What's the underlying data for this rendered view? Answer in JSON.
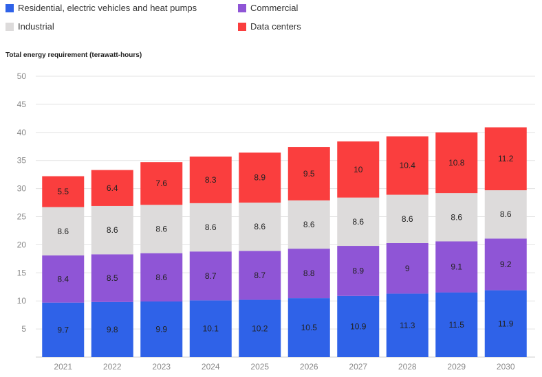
{
  "colors": {
    "residential": "#2f62e8",
    "commercial": "#8f55d6",
    "industrial": "#dddbdb",
    "data_centers": "#fa3e3e",
    "grid": "#e3e3e3",
    "axis": "#cccccc"
  },
  "legend": [
    {
      "label": "Residential, electric vehicles and heat pumps",
      "color": "#2f62e8"
    },
    {
      "label": "Commercial",
      "color": "#8f55d6"
    },
    {
      "label": "Industrial",
      "color": "#dddbdb"
    },
    {
      "label": "Data centers",
      "color": "#fa3e3e"
    }
  ],
  "chart_data": {
    "type": "bar",
    "stacked": true,
    "ylabel": "Total energy requirement (terawatt-hours)",
    "ylim": [
      0,
      50
    ],
    "yticks": [
      5,
      10,
      15,
      20,
      25,
      30,
      35,
      40,
      45,
      50
    ],
    "categories": [
      "2021",
      "2022",
      "2023",
      "2024",
      "2025",
      "2026",
      "2027",
      "2028",
      "2029",
      "2030"
    ],
    "series": [
      {
        "name": "Residential, electric vehicles and heat pumps",
        "color": "#2f62e8",
        "values": [
          9.7,
          9.8,
          9.9,
          10.1,
          10.2,
          10.5,
          10.9,
          11.3,
          11.5,
          11.9
        ]
      },
      {
        "name": "Commercial",
        "color": "#8f55d6",
        "values": [
          8.4,
          8.5,
          8.6,
          8.7,
          8.7,
          8.8,
          8.9,
          9,
          9.1,
          9.2
        ]
      },
      {
        "name": "Industrial",
        "color": "#dddbdb",
        "values": [
          8.6,
          8.6,
          8.6,
          8.6,
          8.6,
          8.6,
          8.6,
          8.6,
          8.6,
          8.6
        ]
      },
      {
        "name": "Data centers",
        "color": "#fa3e3e",
        "values": [
          5.5,
          6.4,
          7.6,
          8.3,
          8.9,
          9.5,
          10,
          10.4,
          10.8,
          11.2
        ]
      }
    ],
    "grid": true,
    "legend_position": "top"
  }
}
